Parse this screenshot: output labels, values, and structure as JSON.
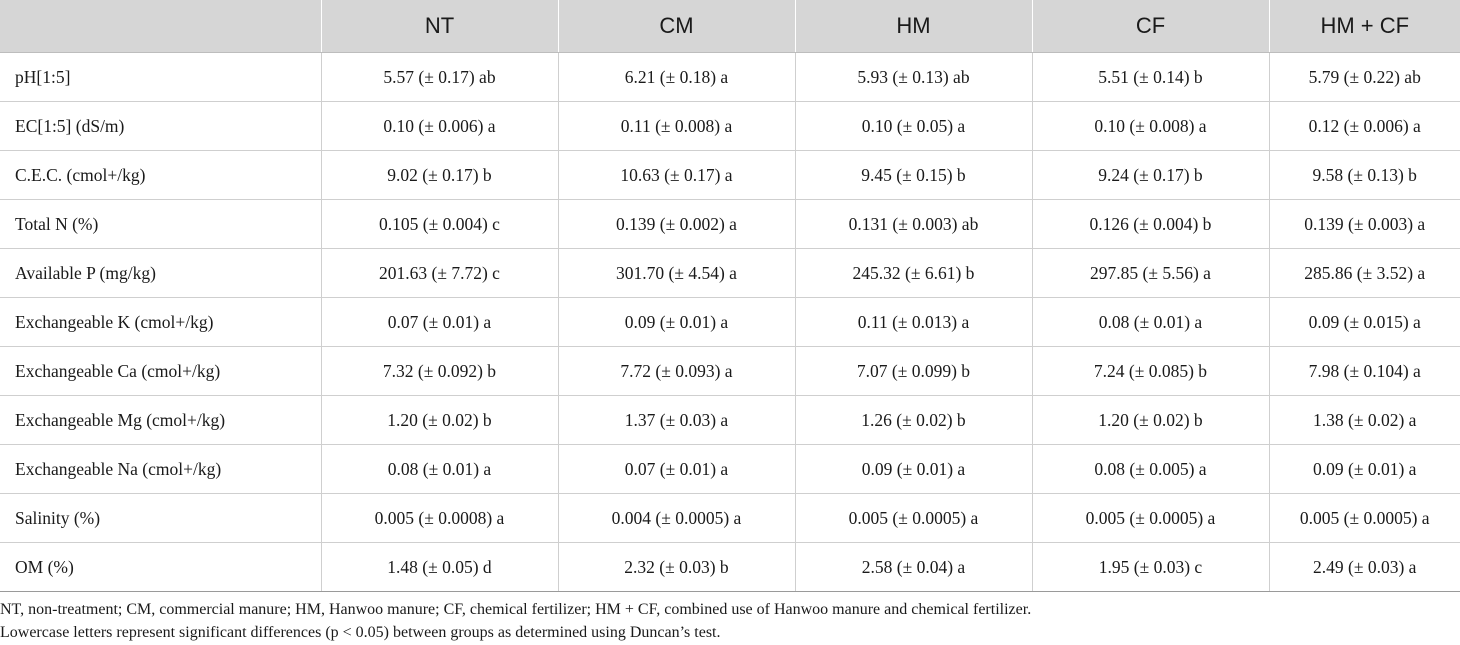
{
  "table": {
    "headers": [
      "",
      "NT",
      "CM",
      "HM",
      "CF",
      "HM + CF"
    ],
    "rows": [
      [
        "pH[1:5]",
        "5.57 (± 0.17) ab",
        "6.21 (± 0.18) a",
        "5.93 (± 0.13) ab",
        "5.51 (± 0.14) b",
        "5.79 (± 0.22) ab"
      ],
      [
        "EC[1:5] (dS/m)",
        "0.10 (± 0.006) a",
        "0.11 (± 0.008) a",
        "0.10 (± 0.05) a",
        "0.10 (± 0.008) a",
        "0.12 (± 0.006) a"
      ],
      [
        "C.E.C. (cmol+/kg)",
        "9.02 (± 0.17) b",
        "10.63 (± 0.17) a",
        "9.45 (± 0.15) b",
        "9.24 (± 0.17) b",
        "9.58 (± 0.13) b"
      ],
      [
        "Total N (%)",
        "0.105 (± 0.004) c",
        "0.139 (± 0.002) a",
        "0.131 (± 0.003) ab",
        "0.126 (± 0.004) b",
        "0.139 (± 0.003) a"
      ],
      [
        "Available P (mg/kg)",
        "201.63 (± 7.72) c",
        "301.70 (± 4.54) a",
        "245.32 (± 6.61) b",
        "297.85 (± 5.56) a",
        "285.86 (± 3.52) a"
      ],
      [
        "Exchangeable K (cmol+/kg)",
        "0.07 (± 0.01) a",
        "0.09 (± 0.01) a",
        "0.11 (± 0.013) a",
        "0.08 (± 0.01) a",
        "0.09 (± 0.015) a"
      ],
      [
        "Exchangeable Ca (cmol+/kg)",
        "7.32 (± 0.092) b",
        "7.72 (± 0.093) a",
        "7.07 (± 0.099) b",
        "7.24 (± 0.085) b",
        "7.98 (± 0.104) a"
      ],
      [
        "Exchangeable Mg (cmol+/kg)",
        "1.20 (± 0.02) b",
        "1.37 (± 0.03) a",
        "1.26 (± 0.02) b",
        "1.20 (± 0.02) b",
        "1.38 (± 0.02) a"
      ],
      [
        "Exchangeable Na (cmol+/kg)",
        "0.08 (± 0.01) a",
        "0.07 (± 0.01) a",
        "0.09 (± 0.01) a",
        "0.08 (± 0.005) a",
        "0.09 (± 0.01) a"
      ],
      [
        "Salinity (%)",
        "0.005 (± 0.0008) a",
        "0.004 (± 0.0005) a",
        "0.005 (± 0.0005) a",
        "0.005 (± 0.0005) a",
        "0.005 (± 0.0005) a"
      ],
      [
        "OM (%)",
        "1.48 (± 0.05) d",
        "2.32 (± 0.03) b",
        "2.58 (± 0.04) a",
        "1.95 (± 0.03) c",
        "2.49 (± 0.03) a"
      ]
    ]
  },
  "footnotes": [
    "NT, non-treatment; CM, commercial manure; HM, Hanwoo manure; CF, chemical fertilizer; HM + CF, combined use of Hanwoo manure and chemical fertilizer.",
    "Lowercase letters represent significant differences (p < 0.05) between groups as determined using Duncan’s test."
  ]
}
